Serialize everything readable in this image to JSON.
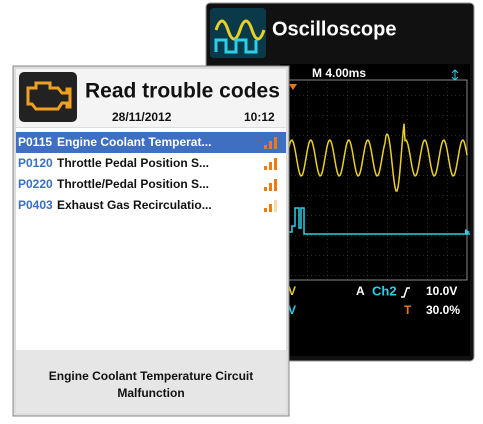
{
  "oscilloscope": {
    "title": "Oscilloscope",
    "timebase": "M 4.00ms",
    "status": {
      "left_top": "V",
      "left_bottom": "V",
      "coupling": "A",
      "channel": "Ch2",
      "level": "10.0V",
      "trigger_label": "T",
      "trigger_value": "30.0%"
    }
  },
  "trouble_codes": {
    "title": "Read trouble codes",
    "date": "28/11/2012",
    "time": "10:12",
    "rows": [
      {
        "code": "P0115",
        "description": "Engine Coolant Temperat..."
      },
      {
        "code": "P0120",
        "description": "Throttle Pedal Position S..."
      },
      {
        "code": "P0220",
        "description": "Throttle/Pedal Position S..."
      },
      {
        "code": "P0403",
        "description": "Exhaust Gas Recirculatio..."
      }
    ],
    "footer": [
      "Engine Coolant Temperature Circuit",
      "Malfunction"
    ]
  }
}
